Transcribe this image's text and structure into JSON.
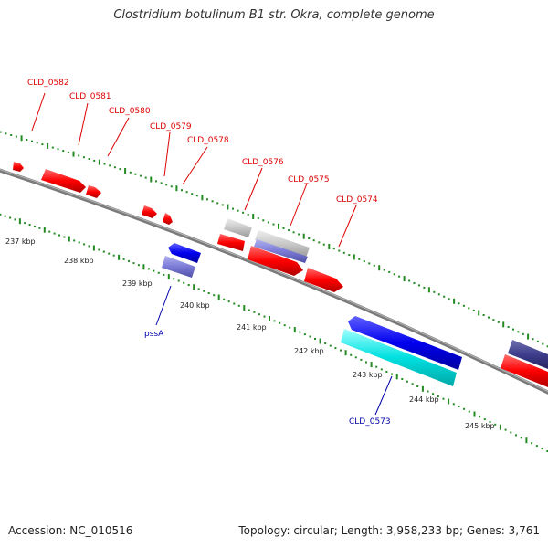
{
  "title": "Clostridium botulinum B1 str. Okra, complete genome",
  "footer": {
    "accession": "Accession: NC_010516",
    "stats": "Topology: circular; Length: 3,958,233 bp; Genes: 3,761"
  },
  "colors": {
    "backbone": "#808080",
    "forward_red": "#ff0000",
    "reverse_blue": "#0000ee",
    "gray_feature": "#c8c8c8",
    "lavender": "#7b7bd6",
    "cyan": "#00e0e0",
    "navy": "#3d3d8c",
    "tick_green": "#228b22",
    "label_red": "#dd0000",
    "label_blue": "#0000aa"
  },
  "scale_labels": [
    "237 kbp",
    "238 kbp",
    "239 kbp",
    "240 kbp",
    "241 kbp",
    "242 kbp",
    "243 kbp",
    "244 kbp",
    "245 kbp"
  ],
  "gene_labels_top": [
    "CLD_0582",
    "CLD_0581",
    "CLD_0580",
    "CLD_0579",
    "CLD_0578",
    "CLD_0576",
    "CLD_0575",
    "CLD_0574"
  ],
  "gene_labels_bottom": [
    "pssA",
    "CLD_0573"
  ]
}
